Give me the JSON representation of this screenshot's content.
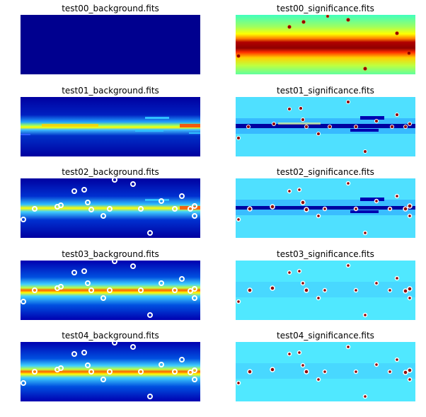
{
  "figure": {
    "rows": [
      {
        "left_title": "test00_background.fits",
        "right_title": "test00_significance.fits"
      },
      {
        "left_title": "test01_background.fits",
        "right_title": "test01_significance.fits"
      },
      {
        "left_title": "test02_background.fits",
        "right_title": "test02_significance.fits"
      },
      {
        "left_title": "test03_background.fits",
        "right_title": "test03_significance.fits"
      },
      {
        "left_title": "test04_background.fits",
        "right_title": "test04_significance.fits"
      }
    ]
  }
}
